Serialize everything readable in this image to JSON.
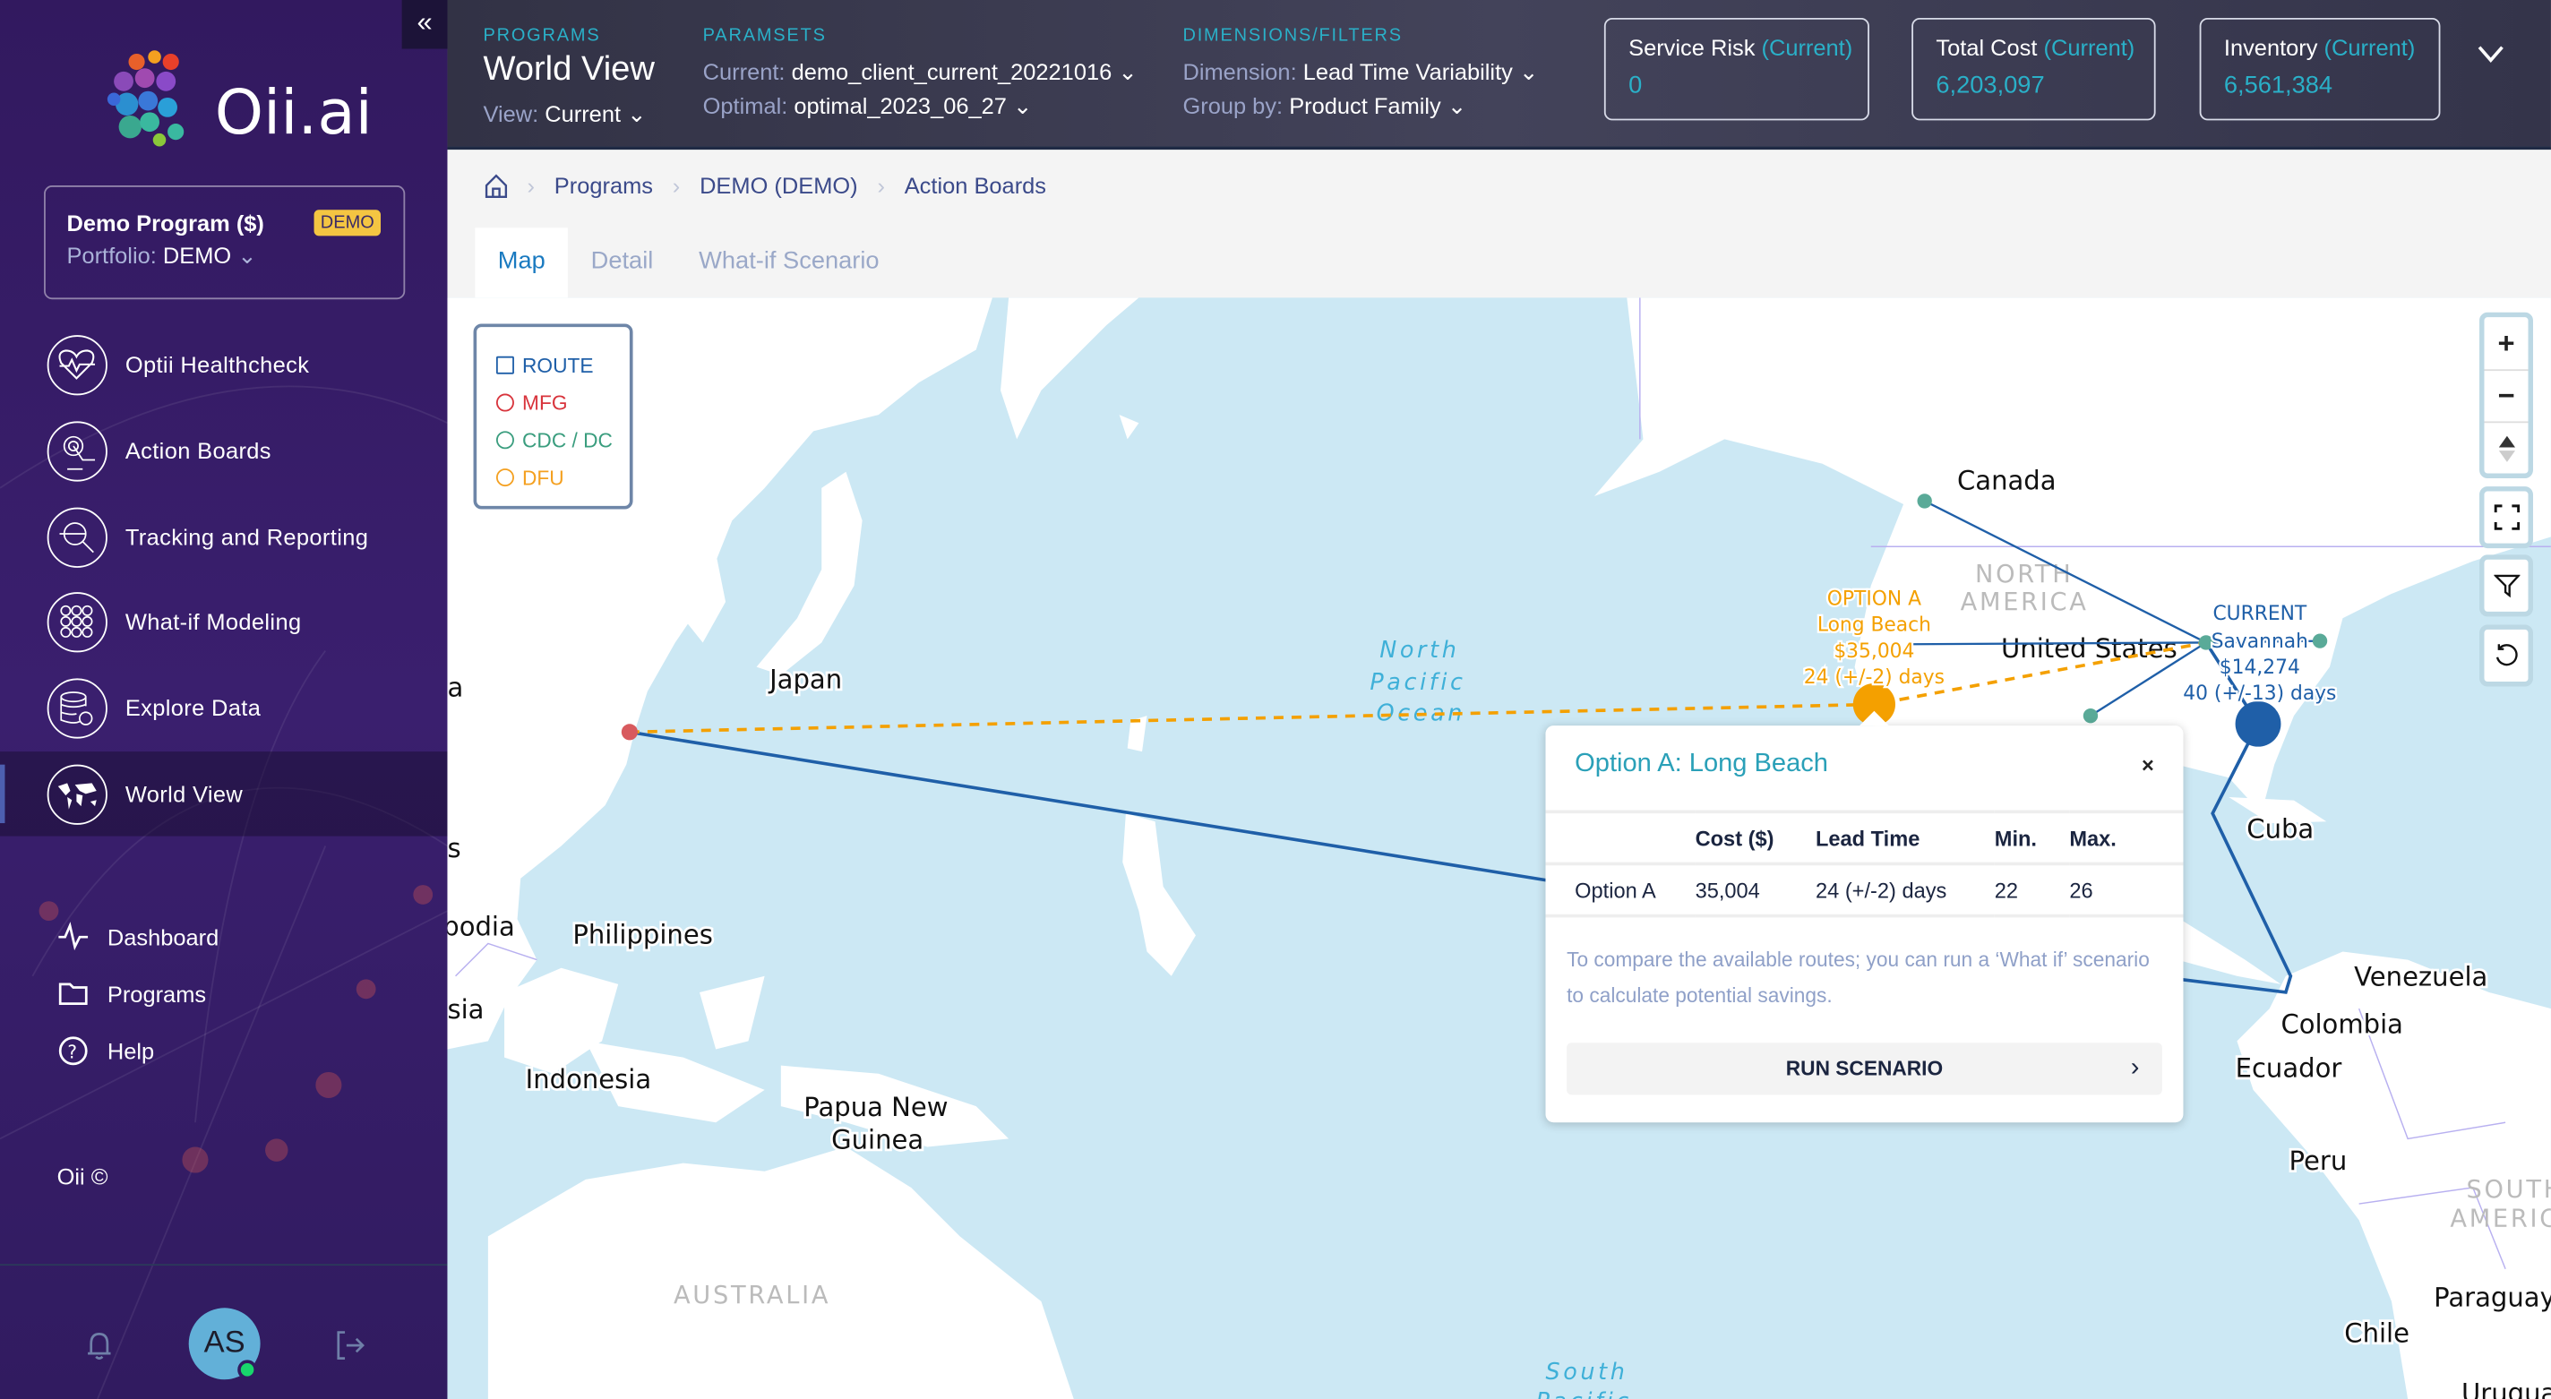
{
  "sidebar": {
    "collapse_icon": "double-chevron-left",
    "logo_text": "Oii.ai",
    "program": {
      "name": "Demo Program ($)",
      "badge": "DEMO",
      "portfolio_label": "Portfolio:",
      "portfolio_value": "DEMO"
    },
    "nav": [
      {
        "label": "Optii Healthcheck",
        "icon": "heart-pulse-icon"
      },
      {
        "label": "Action Boards",
        "icon": "touch-icon"
      },
      {
        "label": "Tracking and Reporting",
        "icon": "magnifier-chart-icon"
      },
      {
        "label": "What-if Modeling",
        "icon": "network-icon"
      },
      {
        "label": "Explore Data",
        "icon": "database-sync-icon"
      },
      {
        "label": "World View",
        "icon": "world-map-icon",
        "active": true
      }
    ],
    "links": [
      {
        "label": "Dashboard",
        "icon": "activity-icon"
      },
      {
        "label": "Programs",
        "icon": "folder-icon"
      },
      {
        "label": "Help",
        "icon": "help-icon"
      }
    ],
    "copyright": "Oii ©",
    "avatar": "AS"
  },
  "header": {
    "programs_label": "PROGRAMS",
    "title": "World View",
    "view_label": "View:",
    "view_value": "Current",
    "paramsets_label": "PARAMSETS",
    "current_label": "Current:",
    "current_value": "demo_client_current_20221016",
    "optimal_label": "Optimal:",
    "optimal_value": "optimal_2023_06_27",
    "dimensions_label": "DIMENSIONS/FILTERS",
    "dimension_label": "Dimension:",
    "dimension_value": "Lead Time Variability",
    "groupby_label": "Group by:",
    "groupby_value": "Product Family",
    "kpis": [
      {
        "title": "Service Risk",
        "qualifier": "(Current)",
        "value": "0"
      },
      {
        "title": "Total Cost",
        "qualifier": "(Current)",
        "value": "6,203,097"
      },
      {
        "title": "Inventory",
        "qualifier": "(Current)",
        "value": "6,561,384"
      }
    ]
  },
  "breadcrumb": [
    "Programs",
    "DEMO (DEMO)",
    "Action Boards"
  ],
  "tabs": [
    {
      "label": "Map",
      "active": true
    },
    {
      "label": "Detail"
    },
    {
      "label": "What-if Scenario"
    }
  ],
  "map": {
    "legend": [
      {
        "label": "ROUTE",
        "color": "#1f5fa8"
      },
      {
        "label": "MFG",
        "color": "#d8343c"
      },
      {
        "label": "CDC / DC",
        "color": "#3a9d7e"
      },
      {
        "label": "DFU",
        "color": "#f4a020"
      }
    ],
    "labels": {
      "china_partial": "a",
      "laos_partial": "s",
      "cambodia_partial": "nbodia",
      "malaysia_partial": "sia",
      "japan": "Japan",
      "philippines": "Philippines",
      "indonesia": "Indonesia",
      "png1": "Papua New",
      "png2": "Guinea",
      "australia": "AUSTRALIA",
      "ocean_np1": "North",
      "ocean_np2": "Pacific",
      "ocean_np3": "Ocean",
      "ocean_sp1": "South",
      "ocean_sp2": "Pacific",
      "canada": "Canada",
      "na1": "NORTH",
      "na2": "AMERICA",
      "us": "United States",
      "cuba": "Cuba",
      "venezuela": "Venezuela",
      "colombia": "Colombia",
      "ecuador": "Ecuador",
      "peru": "Peru",
      "sa1": "SOUTH",
      "sa2": "AMERICA",
      "paraguay": "Paraguay",
      "chile": "Chile",
      "uruguay": "Urugua"
    },
    "option_a": {
      "title": "OPTION A",
      "port": "Long Beach",
      "cost": "$35,004",
      "lead": "24 (+/-2) days",
      "color": "#f4a000"
    },
    "current": {
      "title": "CURRENT",
      "port": "Savannah",
      "cost": "$14,274",
      "lead": "40 (+/-13) days",
      "color": "#1f5fa8"
    },
    "controls": [
      "zoom-in",
      "zoom-out",
      "compass",
      "fullscreen",
      "filter",
      "reset"
    ]
  },
  "popup": {
    "title": "Option A: Long Beach",
    "columns": [
      "",
      "Cost ($)",
      "Lead Time",
      "Min.",
      "Max."
    ],
    "row": [
      "Option A",
      "35,004",
      "24 (+/-2) days",
      "22",
      "26"
    ],
    "note": "To compare the available routes; you can run a ‘What if’ scenario to calculate potential savings.",
    "button": "RUN SCENARIO"
  }
}
